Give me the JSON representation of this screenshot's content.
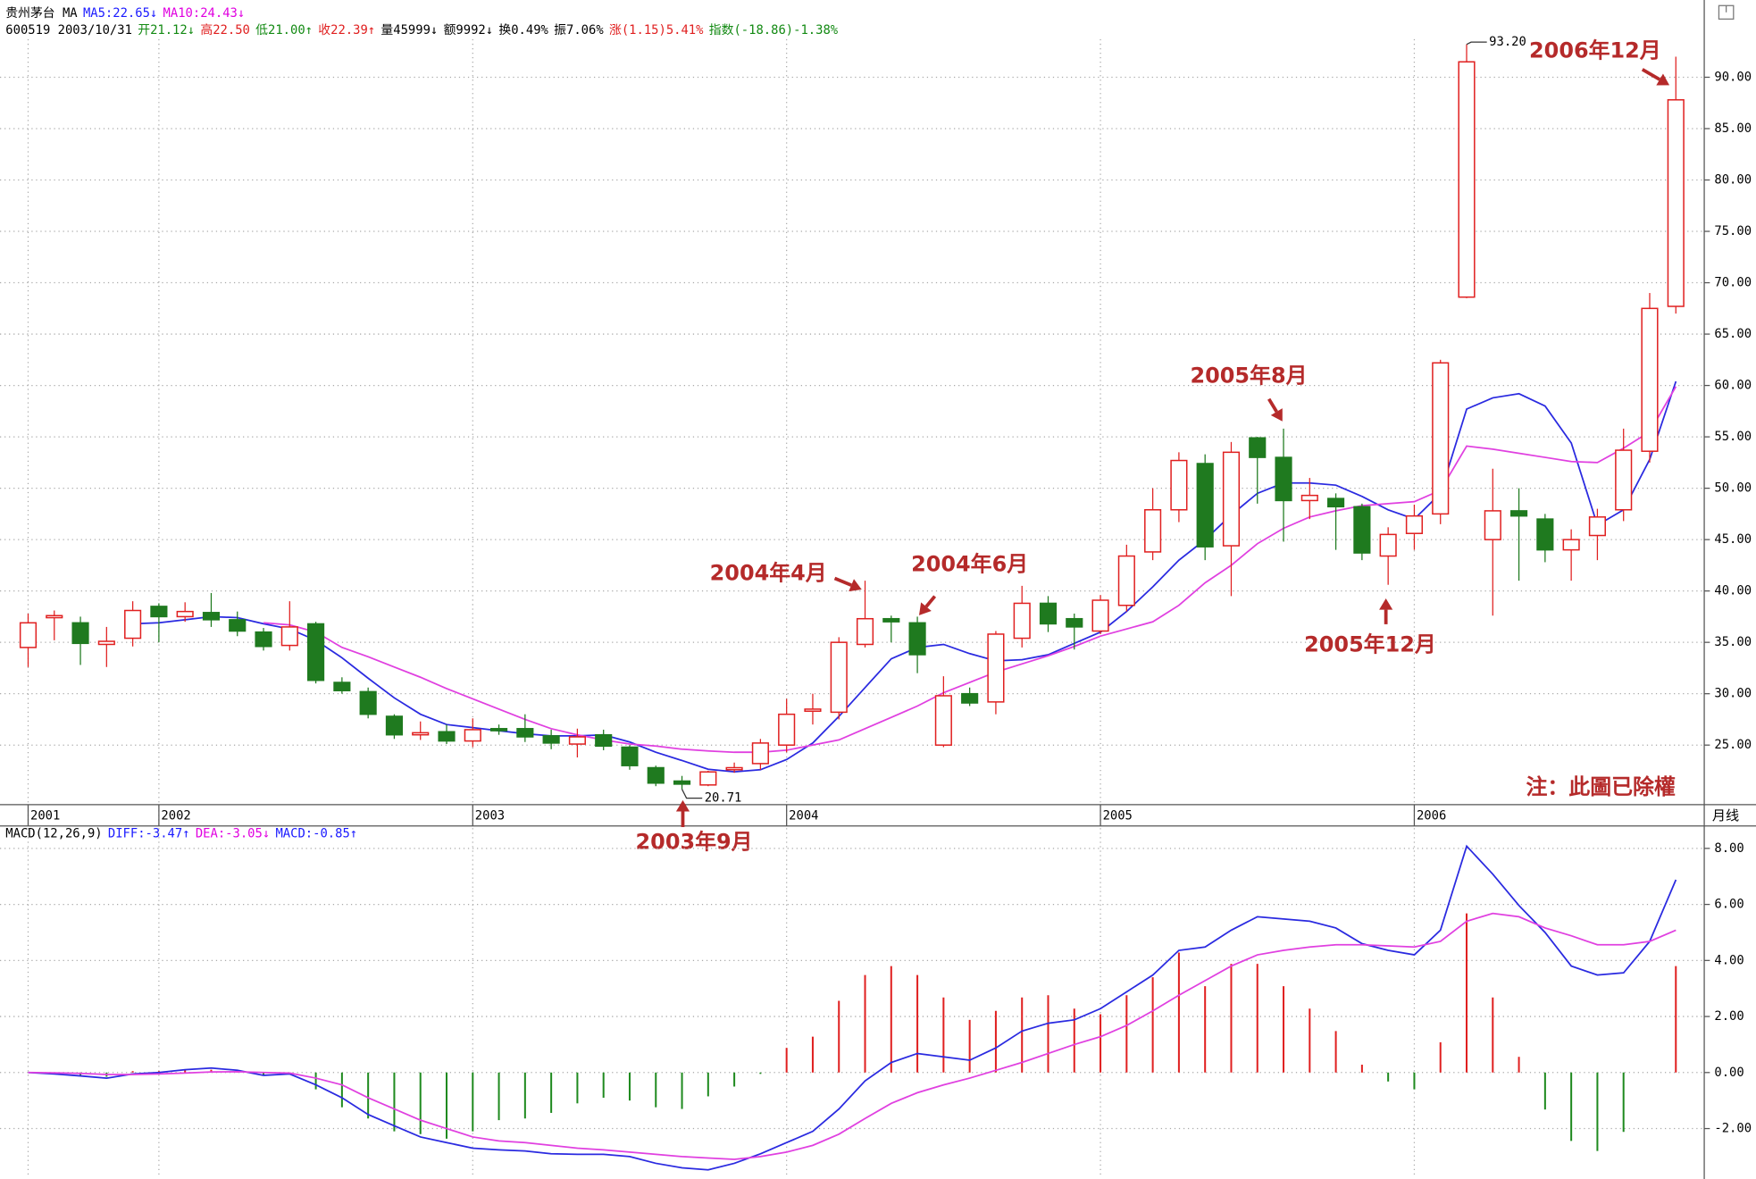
{
  "header": {
    "line1": [
      {
        "text": "贵州茅台 MA",
        "color": "#000000"
      },
      {
        "text": "MA5:22.65↓",
        "color": "#1a1aff"
      },
      {
        "text": "MA10:24.43↓",
        "color": "#e000e0"
      }
    ],
    "line2": [
      {
        "text": "600519 2003/10/31",
        "color": "#000000"
      },
      {
        "text": "开21.12↓",
        "color": "#138a13"
      },
      {
        "text": "高22.50",
        "color": "#e02020"
      },
      {
        "text": "低21.00↑",
        "color": "#138a13"
      },
      {
        "text": "收22.39↑",
        "color": "#e02020"
      },
      {
        "text": "量45999↓",
        "color": "#000000"
      },
      {
        "text": "额9992↓",
        "color": "#000000"
      },
      {
        "text": "换0.49%",
        "color": "#000000"
      },
      {
        "text": "振7.06%",
        "color": "#000000"
      },
      {
        "text": "涨(1.15)5.41%",
        "color": "#e02020"
      },
      {
        "text": "指数(-18.86)-1.38%",
        "color": "#138a13"
      }
    ],
    "macd_line": [
      {
        "text": "MACD(12,26,9)",
        "color": "#000000"
      },
      {
        "text": "DIFF:-3.47↑",
        "color": "#1a1aff"
      },
      {
        "text": "DEA:-3.05↓",
        "color": "#e000e0"
      },
      {
        "text": "MACD:-0.85↑",
        "color": "#1a1aff"
      }
    ]
  },
  "chart_data": [
    {
      "type": "candlestick",
      "categories": [
        "2001",
        null,
        null,
        null,
        null,
        "2002",
        null,
        null,
        null,
        null,
        null,
        null,
        null,
        null,
        null,
        null,
        null,
        "2003",
        null,
        null,
        null,
        null,
        null,
        null,
        null,
        null,
        null,
        null,
        null,
        "2004",
        null,
        null,
        null,
        null,
        null,
        null,
        null,
        null,
        null,
        null,
        null,
        "2005",
        null,
        null,
        null,
        null,
        null,
        null,
        null,
        null,
        null,
        null,
        null,
        "2006",
        null,
        null,
        null,
        null,
        null,
        null,
        null,
        null,
        null,
        null
      ],
      "open": [
        34.5,
        37.4,
        36.9,
        34.8,
        35.4,
        38.5,
        37.5,
        37.9,
        37.2,
        36.0,
        34.7,
        36.8,
        31.1,
        30.2,
        27.8,
        26.0,
        26.3,
        25.4,
        26.6,
        26.6,
        25.9,
        25.1,
        26.0,
        24.8,
        22.8,
        21.5,
        21.12,
        22.6,
        23.2,
        25.0,
        28.3,
        28.2,
        34.8,
        37.3,
        36.9,
        25.0,
        30.0,
        29.2,
        35.4,
        38.8,
        37.3,
        36.1,
        38.6,
        43.8,
        47.9,
        52.4,
        44.4,
        54.9,
        53.0,
        48.8,
        49.0,
        48.2,
        43.4,
        45.6,
        47.5,
        68.6,
        45.0,
        47.8,
        47.0,
        44.0,
        45.4,
        47.9,
        53.6,
        67.7
      ],
      "high": [
        37.8,
        38.1,
        37.5,
        36.5,
        39.0,
        38.8,
        38.9,
        39.8,
        38.0,
        36.4,
        39.0,
        37.0,
        31.6,
        30.6,
        28.0,
        27.3,
        27.0,
        27.6,
        27.0,
        28.0,
        26.5,
        26.6,
        26.5,
        25.0,
        23.0,
        22.0,
        22.5,
        23.3,
        25.6,
        29.5,
        30.0,
        35.5,
        41.0,
        37.6,
        37.5,
        31.7,
        30.6,
        36.1,
        40.5,
        39.5,
        37.8,
        39.6,
        44.5,
        50.0,
        53.5,
        53.3,
        54.5,
        55.0,
        55.8,
        51.0,
        49.5,
        48.5,
        46.2,
        48.4,
        62.5,
        93.2,
        51.9,
        50.0,
        47.5,
        46.0,
        48.0,
        55.8,
        69.0,
        92.0
      ],
      "low": [
        32.6,
        35.2,
        32.8,
        32.6,
        34.6,
        35.0,
        37.0,
        36.5,
        35.6,
        34.2,
        34.2,
        31.0,
        30.0,
        27.6,
        25.6,
        25.5,
        25.1,
        24.8,
        26.0,
        25.3,
        24.6,
        23.8,
        24.5,
        22.6,
        21.0,
        20.71,
        21.0,
        22.3,
        22.6,
        24.3,
        27.0,
        27.5,
        34.5,
        35.0,
        32.0,
        24.8,
        28.8,
        28.0,
        34.5,
        36.0,
        34.3,
        35.8,
        38.0,
        43.0,
        46.7,
        43.0,
        39.5,
        48.5,
        44.8,
        47.0,
        44.0,
        43.0,
        40.6,
        44.0,
        46.5,
        68.5,
        37.6,
        41.0,
        42.8,
        41.0,
        43.0,
        46.8,
        52.5,
        67.0
      ],
      "close": [
        36.9,
        37.6,
        34.9,
        35.1,
        38.1,
        37.5,
        38.0,
        37.2,
        36.1,
        34.6,
        36.5,
        31.3,
        30.3,
        28.0,
        26.0,
        26.2,
        25.4,
        26.5,
        26.4,
        25.8,
        25.2,
        25.8,
        24.9,
        23.0,
        21.3,
        21.2,
        22.39,
        22.8,
        25.2,
        28.0,
        28.5,
        35.0,
        37.3,
        37.0,
        33.8,
        29.8,
        29.1,
        35.8,
        38.8,
        36.8,
        36.5,
        39.1,
        43.4,
        47.9,
        52.7,
        44.3,
        53.5,
        53.0,
        48.8,
        49.3,
        48.2,
        43.7,
        45.5,
        47.3,
        62.2,
        91.5,
        47.8,
        47.3,
        44.0,
        45.0,
        47.2,
        53.7,
        67.5,
        87.8
      ],
      "up_color": "#e02020",
      "down_color": "#1f7a1f",
      "lines": [
        {
          "color": "#2a2ae0",
          "values": [
            null,
            null,
            null,
            null,
            36.8,
            36.9,
            37.2,
            37.5,
            37.4,
            36.8,
            36.3,
            35.2,
            33.5,
            31.5,
            29.6,
            28.0,
            27.0,
            26.7,
            26.4,
            26.1,
            25.9,
            25.9,
            26.0,
            25.3,
            24.3,
            23.5,
            22.65,
            22.4,
            22.6,
            23.6,
            25.2,
            27.8,
            30.6,
            33.4,
            34.5,
            34.8,
            33.9,
            33.2,
            33.3,
            33.8,
            34.9,
            36.0,
            38.0,
            40.4,
            43.0,
            45.0,
            47.4,
            49.5,
            50.5,
            50.5,
            50.3,
            49.2,
            47.9,
            47.0,
            49.5,
            57.7,
            58.8,
            59.2,
            58.0,
            54.4,
            46.4,
            47.9,
            52.8,
            60.4
          ]
        },
        {
          "color": "#e040e0",
          "values": [
            null,
            null,
            null,
            null,
            null,
            null,
            null,
            null,
            null,
            36.9,
            36.7,
            36.0,
            34.5,
            33.6,
            32.6,
            31.6,
            30.5,
            29.5,
            28.5,
            27.5,
            26.6,
            26.0,
            25.5,
            25.1,
            24.9,
            24.6,
            24.43,
            24.3,
            24.3,
            24.5,
            25.0,
            25.5,
            26.6,
            27.7,
            28.8,
            30.1,
            31.1,
            32.1,
            32.9,
            33.7,
            34.6,
            35.6,
            36.3,
            37.0,
            38.6,
            40.8,
            42.5,
            44.6,
            46.1,
            47.2,
            47.8,
            48.3,
            48.5,
            48.7,
            49.8,
            54.1,
            53.8,
            53.4,
            53.0,
            52.6,
            52.5,
            53.9,
            55.5,
            59.9
          ]
        }
      ],
      "max_label": "93.20",
      "min_label": "20.71",
      "annotations": [
        "2003年9月",
        "2004年4月",
        "2004年6月",
        "2005年8月",
        "2005年12月",
        "2006年12月"
      ],
      "note": "注：此圖已除權",
      "period": "月线",
      "ylim": [
        19.2,
        93.7
      ],
      "yticks": [
        {
          "value": 25,
          "label": "25.00"
        },
        {
          "value": 30,
          "label": "30.00"
        },
        {
          "value": 35,
          "label": "35.00"
        },
        {
          "value": 40,
          "label": "40.00"
        },
        {
          "value": 45,
          "label": "45.00"
        },
        {
          "value": 50,
          "label": "50.00"
        },
        {
          "value": 55,
          "label": "55.00"
        },
        {
          "value": 60,
          "label": "60.00"
        },
        {
          "value": 65,
          "label": "65.00"
        },
        {
          "value": 70,
          "label": "70.00"
        },
        {
          "value": 75,
          "label": "75.00"
        },
        {
          "value": 80,
          "label": "80.00"
        },
        {
          "value": 85,
          "label": "85.00"
        },
        {
          "value": 90,
          "label": "90.00"
        }
      ],
      "grid": true
    },
    {
      "type": "macd",
      "diff": {
        "color": "#2a2ae0",
        "values": [
          0,
          -0.05,
          -0.12,
          -0.2,
          -0.05,
          0,
          0.1,
          0.16,
          0.08,
          -0.1,
          -0.05,
          -0.44,
          -0.9,
          -1.5,
          -1.9,
          -2.3,
          -2.5,
          -2.7,
          -2.76,
          -2.8,
          -2.9,
          -2.92,
          -2.92,
          -3.0,
          -3.24,
          -3.4,
          -3.47,
          -3.24,
          -2.9,
          -2.5,
          -2.1,
          -1.3,
          -0.3,
          0.36,
          0.68,
          0.56,
          0.44,
          0.88,
          1.48,
          1.76,
          1.88,
          2.28,
          2.88,
          3.48,
          4.36,
          4.48,
          5.08,
          5.56,
          5.48,
          5.4,
          5.16,
          4.6,
          4.36,
          4.2,
          5.08,
          8.08,
          7.08,
          5.96,
          5.0,
          3.8,
          3.48,
          3.56,
          4.68,
          6.88
        ]
      },
      "dea": {
        "color": "#e040e0",
        "values": [
          0,
          -0.01,
          -0.03,
          -0.07,
          -0.07,
          -0.05,
          -0.02,
          0.02,
          0.03,
          0.0,
          -0.02,
          -0.2,
          -0.44,
          -0.9,
          -1.3,
          -1.7,
          -2.0,
          -2.3,
          -2.44,
          -2.5,
          -2.6,
          -2.7,
          -2.76,
          -2.84,
          -2.92,
          -3.0,
          -3.05,
          -3.1,
          -3.0,
          -2.84,
          -2.6,
          -2.2,
          -1.64,
          -1.1,
          -0.72,
          -0.44,
          -0.2,
          0.08,
          0.36,
          0.68,
          1.0,
          1.28,
          1.68,
          2.2,
          2.76,
          3.28,
          3.8,
          4.2,
          4.36,
          4.48,
          4.56,
          4.56,
          4.52,
          4.48,
          4.68,
          5.4,
          5.68,
          5.56,
          5.16,
          4.88,
          4.56,
          4.56,
          4.68,
          5.08
        ]
      },
      "histogram": {
        "pos_color": "#e02020",
        "neg_color": "#1f8a1f",
        "values": [
          0,
          0,
          -0.1,
          -0.15,
          0.05,
          0.05,
          0.1,
          0.1,
          0.05,
          -0.1,
          -0.05,
          -0.6,
          -1.24,
          -1.64,
          -2.1,
          -2.2,
          -2.36,
          -2.1,
          -1.7,
          -1.64,
          -1.44,
          -1.1,
          -0.9,
          -1.0,
          -1.24,
          -1.3,
          -0.85,
          -0.5,
          -0.05,
          0.88,
          1.28,
          2.56,
          3.48,
          3.8,
          3.48,
          2.68,
          1.88,
          2.2,
          2.68,
          2.76,
          2.28,
          2.08,
          2.76,
          3.4,
          4.28,
          3.08,
          3.88,
          3.88,
          3.08,
          2.28,
          1.48,
          0.28,
          -0.32,
          -0.6,
          1.08,
          5.68,
          2.68,
          0.56,
          -1.32,
          -2.44,
          -2.8,
          -2.12,
          0,
          3.8
        ]
      },
      "ylim": [
        -3.72,
        8.76
      ],
      "yticks": [
        {
          "value": -2,
          "label": "-2.00"
        },
        {
          "value": 0,
          "label": "0.00"
        },
        {
          "value": 2,
          "label": "2.00"
        },
        {
          "value": 4,
          "label": "4.00"
        },
        {
          "value": 6,
          "label": "6.00"
        },
        {
          "value": 8,
          "label": "8.00"
        }
      ],
      "grid": true
    }
  ]
}
